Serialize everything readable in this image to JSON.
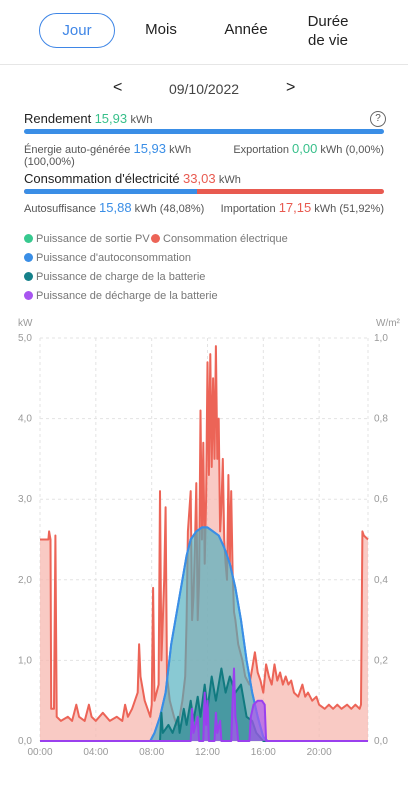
{
  "tabs": [
    {
      "label": "Jour",
      "active": true
    },
    {
      "label": "Mois"
    },
    {
      "label": "Année"
    },
    {
      "label_line1": "Durée",
      "label_line2": "de vie"
    }
  ],
  "date": {
    "prev": "<",
    "value": "09/10/2022",
    "next": ">"
  },
  "rendement": {
    "label": "Rendement",
    "value": "15,93",
    "unit": "kWh"
  },
  "auto_generee": {
    "label": "Énergie auto-générée",
    "value": "15,93",
    "unit": "kWh",
    "pct": "(100,00%)"
  },
  "exportation": {
    "label": "Exportation",
    "value": "0,00",
    "unit": "kWh",
    "pct": "(0,00%)"
  },
  "consommation": {
    "label": "Consommation d'électricité",
    "value": "33,03",
    "unit": "kWh"
  },
  "autosuffisance": {
    "label": "Autosuffisance",
    "value": "15,88",
    "unit": "kWh",
    "pct": "(48,08%)"
  },
  "importation": {
    "label": "Importation",
    "value": "17,15",
    "unit": "kWh",
    "pct": "(51,92%)"
  },
  "legend": [
    {
      "label": "Puissance de sortie PV",
      "color": "#37c98f"
    },
    {
      "label": "Consommation électrique",
      "color": "#ec6457"
    },
    {
      "label": "Puissance d'autoconsommation",
      "color": "#3a8ee6"
    },
    {
      "label": "Puissance de charge de la batterie",
      "color": "#16818a"
    },
    {
      "label": "Puissance de décharge de la batterie",
      "color": "#a855f0"
    }
  ],
  "chart_data": {
    "type": "area",
    "ylabel_left": "kW",
    "ylabel_right": "W/m²",
    "ylim_left": [
      0,
      5
    ],
    "ylim_right": [
      0,
      1
    ],
    "yticks_left": [
      "0,0",
      "1,0",
      "2,0",
      "3,0",
      "4,0",
      "5,0"
    ],
    "yticks_right": [
      "0,0",
      "0,2",
      "0,4",
      "0,6",
      "0,8",
      "1,0"
    ],
    "xticks": [
      "00:00",
      "04:00",
      "08:00",
      "12:00",
      "16:00",
      "20:00"
    ],
    "xlim_hours": [
      0,
      23.5
    ],
    "grid": true,
    "series": [
      {
        "name": "Consommation électrique",
        "color": "#ec6457",
        "points": [
          [
            0,
            2.5
          ],
          [
            0.6,
            2.5
          ],
          [
            0.65,
            2.6
          ],
          [
            0.75,
            2.5
          ],
          [
            0.8,
            0.4
          ],
          [
            1.0,
            0.4
          ],
          [
            1.1,
            2.55
          ],
          [
            1.2,
            0.3
          ],
          [
            1.5,
            0.25
          ],
          [
            2,
            0.3
          ],
          [
            2.3,
            0.25
          ],
          [
            2.6,
            0.45
          ],
          [
            2.8,
            0.3
          ],
          [
            3.2,
            0.25
          ],
          [
            3.5,
            0.45
          ],
          [
            3.7,
            0.3
          ],
          [
            4,
            0.25
          ],
          [
            4.5,
            0.35
          ],
          [
            5,
            0.25
          ],
          [
            5.5,
            0.3
          ],
          [
            5.9,
            0.25
          ],
          [
            6.1,
            0.45
          ],
          [
            6.3,
            0.3
          ],
          [
            6.6,
            0.4
          ],
          [
            6.8,
            0.5
          ],
          [
            7.0,
            0.6
          ],
          [
            7.1,
            1.2
          ],
          [
            7.2,
            0.8
          ],
          [
            7.5,
            0.5
          ],
          [
            7.9,
            0.3
          ],
          [
            8.0,
            0.45
          ],
          [
            8.1,
            1.9
          ],
          [
            8.2,
            0.5
          ],
          [
            8.5,
            0.7
          ],
          [
            8.6,
            3.1
          ],
          [
            8.7,
            1.0
          ],
          [
            8.9,
            2.0
          ],
          [
            9.0,
            2.9
          ],
          [
            9.1,
            0.8
          ],
          [
            9.3,
            0.5
          ],
          [
            9.6,
            0.3
          ],
          [
            9.8,
            0.2
          ],
          [
            10,
            0.3
          ],
          [
            10.2,
            0.5
          ],
          [
            10.4,
            0.8
          ],
          [
            10.5,
            1.5
          ],
          [
            10.6,
            2.6
          ],
          [
            10.8,
            3.1
          ],
          [
            10.9,
            1.5
          ],
          [
            11.0,
            1.8
          ],
          [
            11.1,
            2.4
          ],
          [
            11.2,
            3.2
          ],
          [
            11.3,
            1.5
          ],
          [
            11.4,
            2.0
          ],
          [
            11.5,
            4.1
          ],
          [
            11.6,
            2.5
          ],
          [
            11.7,
            3.7
          ],
          [
            11.8,
            2.2
          ],
          [
            11.9,
            3.0
          ],
          [
            12.0,
            4.7
          ],
          [
            12.1,
            3.3
          ],
          [
            12.2,
            4.8
          ],
          [
            12.3,
            3.4
          ],
          [
            12.4,
            4.5
          ],
          [
            12.5,
            3.5
          ],
          [
            12.6,
            4.9
          ],
          [
            12.7,
            3.5
          ],
          [
            12.8,
            4.0
          ],
          [
            12.9,
            2.6
          ],
          [
            13.0,
            2.9
          ],
          [
            13.1,
            3.5
          ],
          [
            13.2,
            2.5
          ],
          [
            13.3,
            2.2
          ],
          [
            13.4,
            2.0
          ],
          [
            13.5,
            3.3
          ],
          [
            13.6,
            2.2
          ],
          [
            13.7,
            3.1
          ],
          [
            13.8,
            2.1
          ],
          [
            13.9,
            1.6
          ],
          [
            14.0,
            1.5
          ],
          [
            14.2,
            1.2
          ],
          [
            14.5,
            1.0
          ],
          [
            14.7,
            0.8
          ],
          [
            15.0,
            0.7
          ],
          [
            15.2,
            0.9
          ],
          [
            15.4,
            1.1
          ],
          [
            15.6,
            0.85
          ],
          [
            15.8,
            0.75
          ],
          [
            16.0,
            0.6
          ],
          [
            16.2,
            0.95
          ],
          [
            16.4,
            0.8
          ],
          [
            16.6,
            0.7
          ],
          [
            16.8,
            0.95
          ],
          [
            17.0,
            0.75
          ],
          [
            17.2,
            0.85
          ],
          [
            17.4,
            0.7
          ],
          [
            17.6,
            0.8
          ],
          [
            17.8,
            0.7
          ],
          [
            18.0,
            0.75
          ],
          [
            18.2,
            0.6
          ],
          [
            18.5,
            0.55
          ],
          [
            18.8,
            0.7
          ],
          [
            19.0,
            0.55
          ],
          [
            19.2,
            0.6
          ],
          [
            19.5,
            0.5
          ],
          [
            19.8,
            0.55
          ],
          [
            20.0,
            0.45
          ],
          [
            20.4,
            0.4
          ],
          [
            20.7,
            0.45
          ],
          [
            21.0,
            0.4
          ],
          [
            21.3,
            0.45
          ],
          [
            21.6,
            0.4
          ],
          [
            22.0,
            0.45
          ],
          [
            22.3,
            0.4
          ],
          [
            22.6,
            0.45
          ],
          [
            22.9,
            0.4
          ],
          [
            23.0,
            0.45
          ],
          [
            23.1,
            2.6
          ],
          [
            23.2,
            2.55
          ],
          [
            23.5,
            2.5
          ]
        ]
      },
      {
        "name": "Puissance d'autoconsommation",
        "color": "#3a8ee6",
        "points": [
          [
            0,
            0
          ],
          [
            7.9,
            0
          ],
          [
            8.2,
            0.1
          ],
          [
            8.6,
            0.3
          ],
          [
            9.0,
            0.6
          ],
          [
            9.4,
            1.2
          ],
          [
            9.8,
            1.6
          ],
          [
            10.2,
            2.0
          ],
          [
            10.5,
            2.3
          ],
          [
            10.8,
            2.5
          ],
          [
            11.2,
            2.6
          ],
          [
            11.6,
            2.65
          ],
          [
            12.0,
            2.65
          ],
          [
            12.4,
            2.6
          ],
          [
            12.8,
            2.55
          ],
          [
            13.2,
            2.4
          ],
          [
            13.6,
            2.2
          ],
          [
            14.0,
            1.9
          ],
          [
            14.4,
            1.5
          ],
          [
            14.8,
            1.0
          ],
          [
            15.2,
            0.6
          ],
          [
            15.6,
            0.3
          ],
          [
            16.0,
            0.05
          ],
          [
            16.3,
            0
          ],
          [
            23.5,
            0
          ]
        ]
      },
      {
        "name": "Puissance de sortie PV",
        "color": "#37c98f",
        "points": [
          [
            0,
            0
          ],
          [
            7.9,
            0
          ],
          [
            8.2,
            0.1
          ],
          [
            8.6,
            0.3
          ],
          [
            9.0,
            0.6
          ],
          [
            9.4,
            1.2
          ],
          [
            9.8,
            1.6
          ],
          [
            10.2,
            2.0
          ],
          [
            10.5,
            2.3
          ],
          [
            10.8,
            2.5
          ],
          [
            11.2,
            2.6
          ],
          [
            11.6,
            2.65
          ],
          [
            12.0,
            2.65
          ],
          [
            12.4,
            2.6
          ],
          [
            12.8,
            2.55
          ],
          [
            13.2,
            2.4
          ],
          [
            13.6,
            2.2
          ],
          [
            14.0,
            1.9
          ],
          [
            14.4,
            1.5
          ],
          [
            14.8,
            1.0
          ],
          [
            15.2,
            0.6
          ],
          [
            15.6,
            0.3
          ],
          [
            16.0,
            0.05
          ],
          [
            16.3,
            0
          ],
          [
            23.5,
            0
          ]
        ]
      },
      {
        "name": "Puissance de charge de la batterie",
        "color": "#16818a",
        "points": [
          [
            0,
            0
          ],
          [
            8.6,
            0
          ],
          [
            8.7,
            0.35
          ],
          [
            8.8,
            0.1
          ],
          [
            9.2,
            0.2
          ],
          [
            9.5,
            0.1
          ],
          [
            9.9,
            0.3
          ],
          [
            10.0,
            0.1
          ],
          [
            10.3,
            0.4
          ],
          [
            10.5,
            0.2
          ],
          [
            10.8,
            0.5
          ],
          [
            11.0,
            0.25
          ],
          [
            11.3,
            0.55
          ],
          [
            11.5,
            0.3
          ],
          [
            11.8,
            0.7
          ],
          [
            12.0,
            0.4
          ],
          [
            12.3,
            0.8
          ],
          [
            12.6,
            0.5
          ],
          [
            13.0,
            0.9
          ],
          [
            13.3,
            0.6
          ],
          [
            13.6,
            0.8
          ],
          [
            14.0,
            0.6
          ],
          [
            14.4,
            0.7
          ],
          [
            14.8,
            0.3
          ],
          [
            15.2,
            0.25
          ],
          [
            15.5,
            0.1
          ],
          [
            16.0,
            0
          ],
          [
            23.5,
            0
          ]
        ]
      },
      {
        "name": "Puissance de décharge de la batterie",
        "color": "#a855f0",
        "points": [
          [
            0,
            0
          ],
          [
            10.8,
            0
          ],
          [
            10.9,
            0.4
          ],
          [
            11.0,
            0.1
          ],
          [
            11.3,
            0.3
          ],
          [
            11.4,
            0
          ],
          [
            11.7,
            0
          ],
          [
            11.8,
            0.6
          ],
          [
            11.9,
            0.2
          ],
          [
            12.0,
            0.5
          ],
          [
            12.1,
            0
          ],
          [
            12.5,
            0
          ],
          [
            12.6,
            0.35
          ],
          [
            12.7,
            0.1
          ],
          [
            12.9,
            0.25
          ],
          [
            13.0,
            0
          ],
          [
            13.7,
            0
          ],
          [
            13.8,
            0.5
          ],
          [
            13.9,
            0.9
          ],
          [
            14.0,
            0.3
          ],
          [
            14.1,
            0.2
          ],
          [
            14.2,
            0
          ],
          [
            15.0,
            0
          ],
          [
            15.1,
            0.3
          ],
          [
            15.3,
            0.45
          ],
          [
            15.6,
            0.5
          ],
          [
            15.9,
            0.5
          ],
          [
            16.1,
            0.45
          ],
          [
            16.2,
            0
          ],
          [
            23.5,
            0
          ]
        ]
      }
    ]
  }
}
